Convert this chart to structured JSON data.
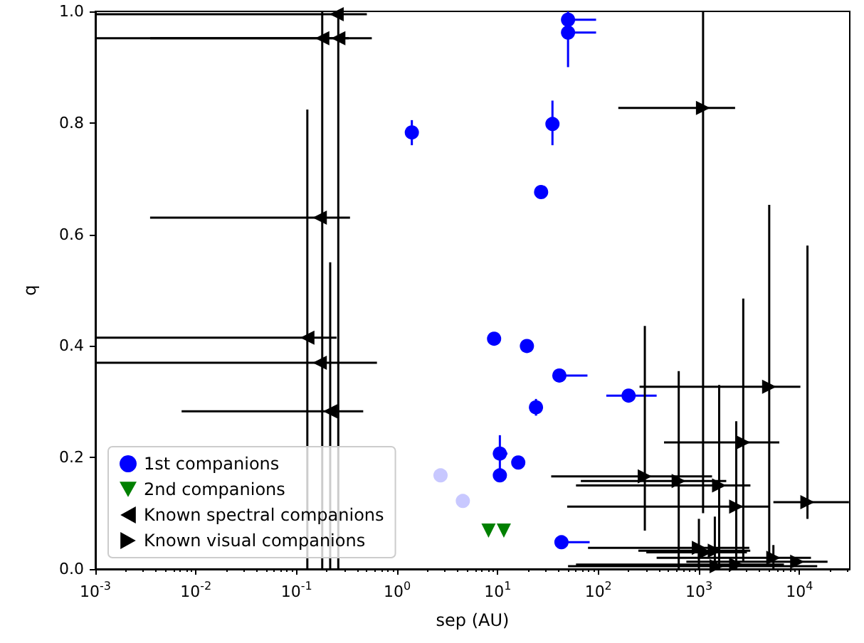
{
  "chart_data": {
    "type": "scatter",
    "xlabel": "sep (AU)",
    "ylabel": "q",
    "log": "x",
    "xlim": [
      0.001,
      31600
    ],
    "ylim": [
      0,
      1
    ],
    "xticks": [
      {
        "value": 0.001,
        "label": "10$^{-3}$"
      },
      {
        "value": 0.01,
        "label": "10$^{-2}$"
      },
      {
        "value": 0.1,
        "label": "10$^{-1}$"
      },
      {
        "value": 1,
        "label": "10$^{0}$"
      },
      {
        "value": 10,
        "label": "10$^{1}$"
      },
      {
        "value": 100,
        "label": "10$^{2}$"
      },
      {
        "value": 1000,
        "label": "10$^{3}$"
      },
      {
        "value": 10000,
        "label": "10$^{4}$"
      }
    ],
    "yticks": [
      {
        "value": 0,
        "label": "0.0"
      },
      {
        "value": 0.2,
        "label": "0.2"
      },
      {
        "value": 0.4,
        "label": "0.4"
      },
      {
        "value": 0.6,
        "label": "0.6"
      },
      {
        "value": 0.8,
        "label": "0.8"
      },
      {
        "value": 1,
        "label": "1.0"
      }
    ],
    "legend": "bottom left",
    "grid": false,
    "series": [
      {
        "name": "1st companions",
        "color": "#0000ff",
        "marker": "circle",
        "x": [
          1.4,
          35,
          27,
          50,
          50,
          9.2,
          19.5,
          24,
          41,
          200,
          10.5,
          10.5,
          16,
          43
        ],
        "values": [
          0.783,
          0.798,
          0.676,
          0.985,
          0.962,
          0.413,
          0.4,
          0.29,
          0.347,
          0.311,
          0.207,
          0.168,
          0.191,
          0.048
        ],
        "errors": [
          [
            0.76,
            0.805
          ],
          [
            0.76,
            0.84
          ],
          null,
          null,
          [
            0.9,
            1.0
          ],
          null,
          null,
          [
            0.275,
            0.305
          ],
          null,
          null,
          [
            0.175,
            0.24
          ],
          null,
          null,
          null
        ],
        "xerrors": [
          null,
          null,
          null,
          [
            50,
            95
          ],
          [
            50,
            95
          ],
          null,
          null,
          null,
          [
            41,
            78
          ],
          [
            120,
            380
          ],
          [
            9,
            12.5
          ],
          null,
          null,
          [
            43,
            82
          ]
        ]
      },
      {
        "color": "#c8c8ff",
        "marker": "circle",
        "x": [
          2.7,
          4.5
        ],
        "values": [
          0.168,
          0.122
        ]
      },
      {
        "name": "2nd companions",
        "color": "#008000",
        "marker": "triangle-down",
        "x": [
          8.1,
          11.5
        ],
        "values": [
          0.069,
          0.069
        ]
      },
      {
        "name": "Known spectral companions",
        "color": "#000000",
        "marker": "triangle-left",
        "x": [
          0.25,
          0.18,
          0.26,
          0.17,
          0.128,
          0.17,
          0.216
        ],
        "values": [
          0.995,
          0.952,
          0.952,
          0.63,
          0.415,
          0.37,
          0.283
        ],
        "xerrors": [
          [
            0.001,
            0.5
          ],
          [
            0.001,
            0.33
          ],
          [
            0.0035,
            0.56
          ],
          [
            0.0035,
            0.34
          ],
          [
            0.001,
            0.25
          ],
          [
            0.001,
            0.63
          ],
          [
            0.0072,
            0.46
          ]
        ],
        "errors": [
          null,
          [
            0,
            1
          ],
          [
            0,
            1
          ],
          null,
          [
            0,
            0.824
          ],
          null,
          [
            0,
            0.55
          ]
        ]
      },
      {
        "name": "Known visual companions",
        "color": "#000000",
        "marker": "triangle-right",
        "x": [
          1100,
          5000,
          2760,
          12000,
          290,
          630,
          1590,
          2350,
          1000,
          1440,
          5500,
          9500,
          2350,
          1500,
          1150
        ],
        "values": [
          0.827,
          0.327,
          0.227,
          0.12,
          0.166,
          0.158,
          0.15,
          0.112,
          0.038,
          0.033,
          0.02,
          0.013,
          0.008,
          0.005,
          0.03
        ],
        "xerrors": [
          [
            158,
            2290
          ],
          [
            257,
            10200
          ],
          [
            450,
            6300
          ],
          [
            5500,
            31000
          ],
          [
            34,
            1350
          ],
          [
            67,
            1870
          ],
          [
            60,
            3250
          ],
          [
            49,
            5000
          ],
          [
            79,
            3170
          ],
          [
            250,
            3240
          ],
          [
            380,
            13000
          ],
          [
            750,
            19000
          ],
          [
            60,
            7000
          ],
          [
            50,
            15000
          ],
          [
            300,
            3000
          ]
        ],
        "errors": [
          [
            0.1,
            1.0
          ],
          [
            0.026,
            0.653
          ],
          [
            0.013,
            0.485
          ],
          [
            0.09,
            0.58
          ],
          [
            0.069,
            0.436
          ],
          [
            0,
            0.355
          ],
          [
            0,
            0.33
          ],
          [
            0,
            0.265
          ],
          [
            0,
            0.09
          ],
          [
            0,
            0.094
          ],
          [
            0,
            0.043
          ],
          null,
          null,
          null,
          null
        ]
      }
    ]
  }
}
